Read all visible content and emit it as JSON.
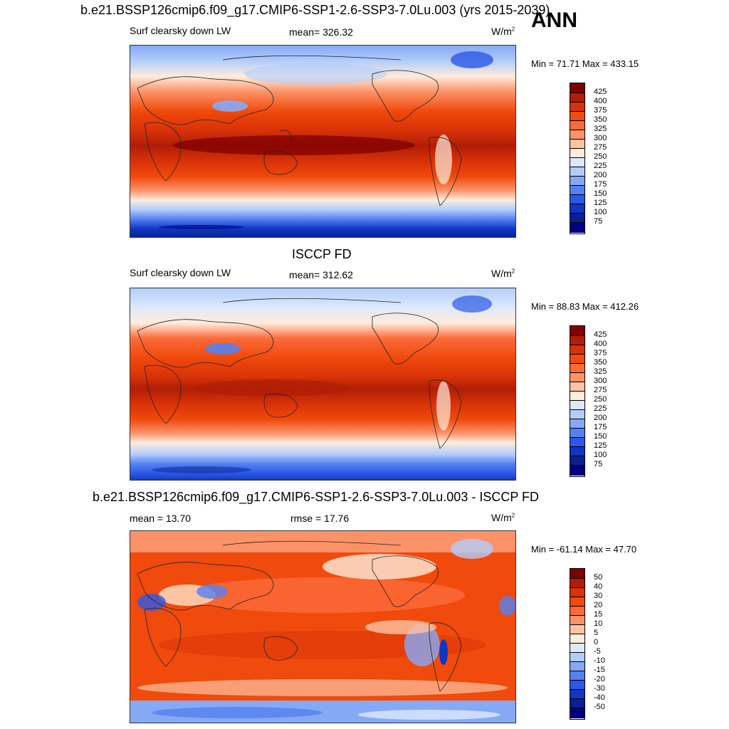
{
  "season": "ANN",
  "panels": [
    {
      "title": "b.e21.BSSP126cmip6.f09_g17.CMIP6-SSP1-2.6-SSP3-7.0Lu.003 (yrs 2015-2039)",
      "left_label": "Surf clearsky down LW",
      "center_label": "mean= 326.32",
      "units": "W/m",
      "units_sup": "2",
      "minmax": "Min =  71.71 Max = 433.15",
      "colorbar_labels": [
        "425",
        "400",
        "375",
        "350",
        "325",
        "300",
        "275",
        "250",
        "225",
        "200",
        "175",
        "150",
        "125",
        "100",
        "75"
      ]
    },
    {
      "title": "ISCCP FD",
      "left_label": "Surf clearsky down LW",
      "center_label": "mean= 312.62",
      "units": "W/m",
      "units_sup": "2",
      "minmax": "Min =  88.83 Max = 412.26",
      "colorbar_labels": [
        "425",
        "400",
        "375",
        "350",
        "325",
        "300",
        "275",
        "250",
        "225",
        "200",
        "175",
        "150",
        "125",
        "100",
        "75"
      ]
    },
    {
      "title": "b.e21.BSSP126cmip6.f09_g17.CMIP6-SSP1-2.6-SSP3-7.0Lu.003 - ISCCP FD",
      "left_label": "mean =  13.70",
      "center_label": "rmse =  17.76",
      "units": "W/m",
      "units_sup": "2",
      "minmax": "Min = -61.14 Max =  47.70",
      "colorbar_labels": [
        "50",
        "40",
        "30",
        "20",
        "15",
        "10",
        "5",
        "0",
        "-5",
        "-10",
        "-15",
        "-20",
        "-30",
        "-40",
        "-50"
      ]
    }
  ],
  "colors": {
    "abs_scale": [
      "#800000",
      "#b01e06",
      "#d83208",
      "#f04a0c",
      "#fb6a3a",
      "#fc9268",
      "#fdc3a3",
      "#feecdc",
      "#dde9fb",
      "#b3cdfb",
      "#86a9f6",
      "#5581f0",
      "#2b58e6",
      "#0f36c4",
      "#072190",
      "#000080"
    ],
    "diff_scale": [
      "#800000",
      "#b01e06",
      "#d83208",
      "#f04a0c",
      "#fb6a3a",
      "#fc9268",
      "#fdc3a3",
      "#feecdc",
      "#dde9fb",
      "#b3cdfb",
      "#86a9f6",
      "#5581f0",
      "#2b58e6",
      "#0f36c4",
      "#072190",
      "#000080"
    ]
  }
}
